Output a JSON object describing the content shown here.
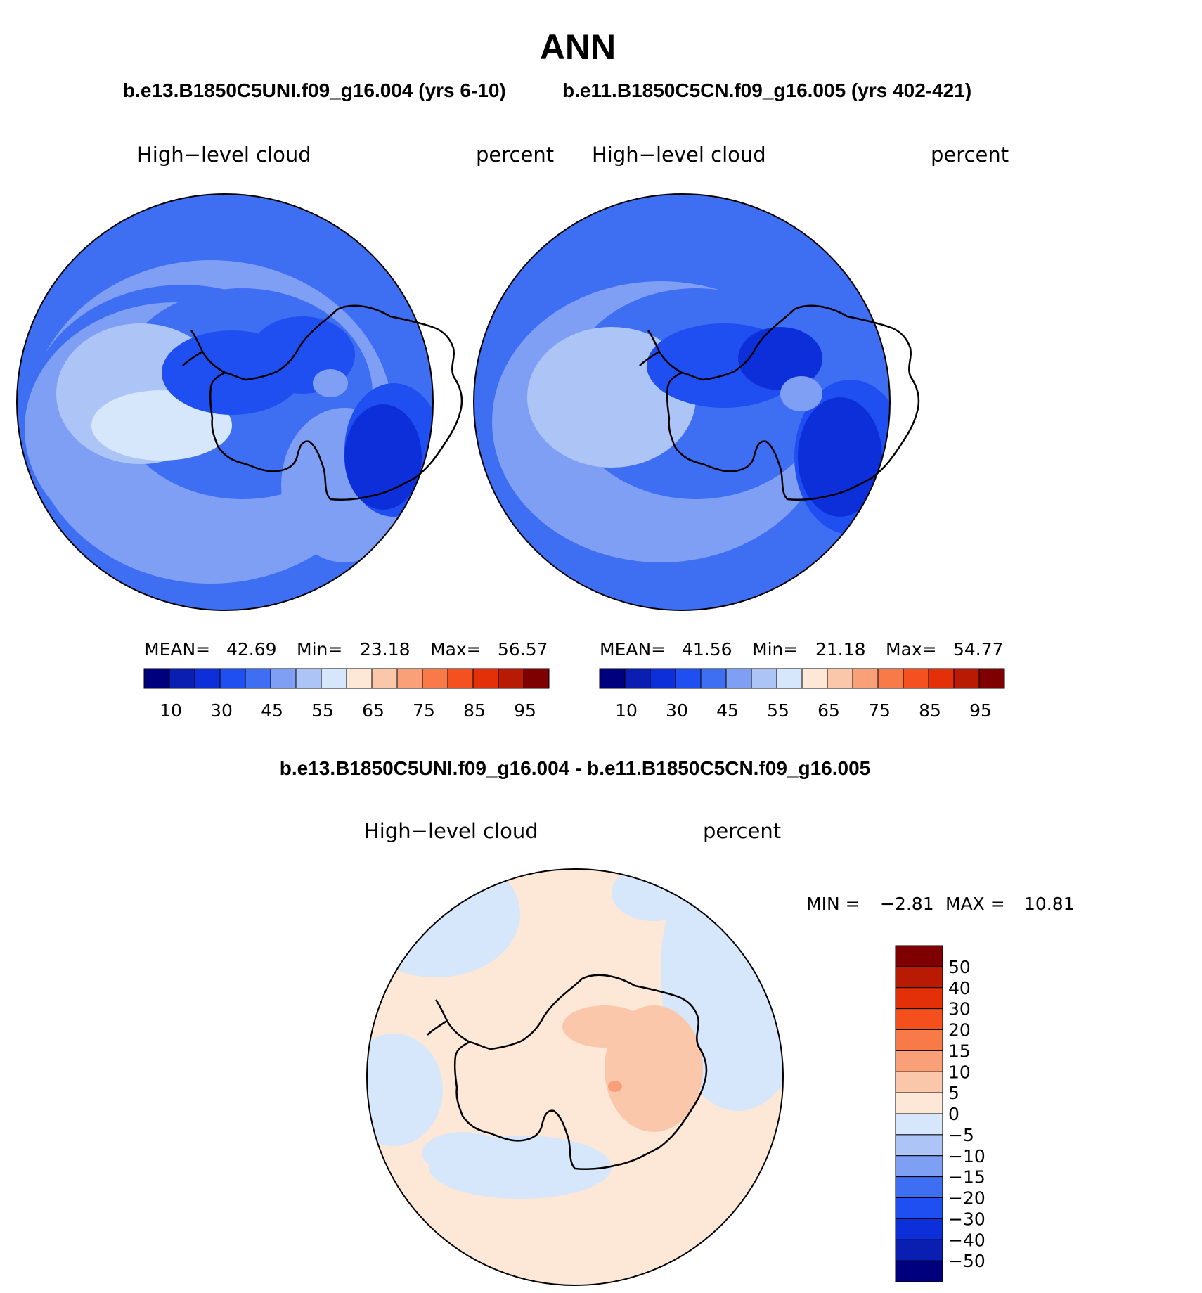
{
  "title": "ANN",
  "case_a": "b.e13.B1850C5UNI.f09_g16.004 (yrs 6-10)",
  "case_b": "b.e11.B1850C5CN.f09_g16.005 (yrs 402-421)",
  "diff_title": "b.e13.B1850C5UNI.f09_g16.004 - b.e11.B1850C5CN.f09_g16.005",
  "panels": [
    {
      "variable": "High−level cloud",
      "units": "percent",
      "mean_label": "MEAN=",
      "mean": "42.69",
      "min_label": "Min=",
      "min": "23.18",
      "max_label": "Max=",
      "max": "56.57"
    },
    {
      "variable": "High−level cloud",
      "units": "percent",
      "mean_label": "MEAN=",
      "mean": "41.56",
      "min_label": "Min=",
      "min": "21.18",
      "max_label": "Max=",
      "max": "54.77"
    }
  ],
  "diff_panel": {
    "variable": "High−level cloud",
    "units": "percent",
    "min_label": "MIN =",
    "min": "−2.81",
    "max_label": "MAX =",
    "max": "10.81"
  },
  "abs_colorbar": {
    "colors": [
      "#00007f",
      "#0a1fb2",
      "#0d2fd9",
      "#1f4ff0",
      "#3e6ef2",
      "#7f9ff5",
      "#adc4f7",
      "#d6e6fb",
      "#fde7d6",
      "#fbc7aa",
      "#f9a078",
      "#f77a48",
      "#f45020",
      "#e43008",
      "#b81a04",
      "#7f0000"
    ],
    "tick_labels": [
      "10",
      "30",
      "45",
      "55",
      "65",
      "75",
      "85",
      "95"
    ]
  },
  "diff_colorbar": {
    "colors": [
      "#7f0000",
      "#b81a04",
      "#e43008",
      "#f44f1c",
      "#f77a48",
      "#f9a078",
      "#fbc7aa",
      "#fde7d6",
      "#d6e6fb",
      "#adc4f7",
      "#7f9ff5",
      "#3e6ef2",
      "#1f4ff0",
      "#0d2fd9",
      "#0a1fb2",
      "#00007f"
    ],
    "tick_labels": [
      "50",
      "40",
      "30",
      "20",
      "15",
      "10",
      "5",
      "0",
      "−5",
      "−10",
      "−15",
      "−20",
      "−30",
      "−40",
      "−50"
    ]
  },
  "map_colors": {
    "ocean_base": "#3e6ef2",
    "light1": "#7f9ff5",
    "light2": "#adc4f7",
    "light3": "#d6e6fb",
    "dark1": "#1f4ff0",
    "dark2": "#0d2fd9",
    "diff_pos": "#fde7d6",
    "diff_pos2": "#fbc7aa",
    "diff_pos3": "#f9a078",
    "diff_neg": "#d6e6fb"
  }
}
